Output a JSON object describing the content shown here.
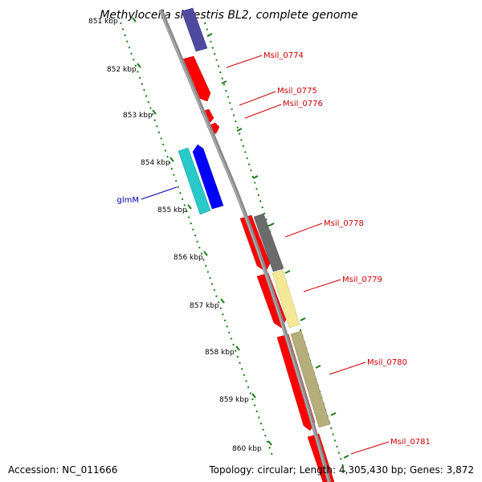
{
  "title": "Methylocella silvestris BL2, complete genome",
  "kbp_labels": [
    "851 kbp",
    "852 kbp",
    "853 kbp",
    "854 kbp",
    "855 kbp",
    "856 kbp",
    "857 kbp",
    "858 kbp",
    "859 kbp",
    "860 kbp"
  ],
  "gene_labels": {
    "msil_0774": "Msil_0774",
    "msil_0775": "Msil_0775",
    "msil_0776": "Msil_0776",
    "glmm": "glmM",
    "msil_0778": "Msil_0778",
    "msil_0779": "Msil_0779",
    "msil_0780": "Msil_0780",
    "msil_0781": "Msil_0781"
  },
  "footer": {
    "accession": "Accession: NC_011666",
    "topology": "Topology: circular; Length: 4,305,430 bp; Genes: 3,872"
  },
  "colors": {
    "backbone": "#8a8a8a",
    "cds_red": "#ff0000",
    "dark_violet": "#4f4aa0",
    "cyan": "#29c9c9",
    "blue": "#0000ff",
    "dark_gray": "#6b6b6b",
    "pale_yellow": "#f2e896",
    "olive": "#b5ad7a",
    "ticks": "#1a7a1a",
    "label_red": "#cc0000",
    "label_blue": "#0000aa"
  }
}
